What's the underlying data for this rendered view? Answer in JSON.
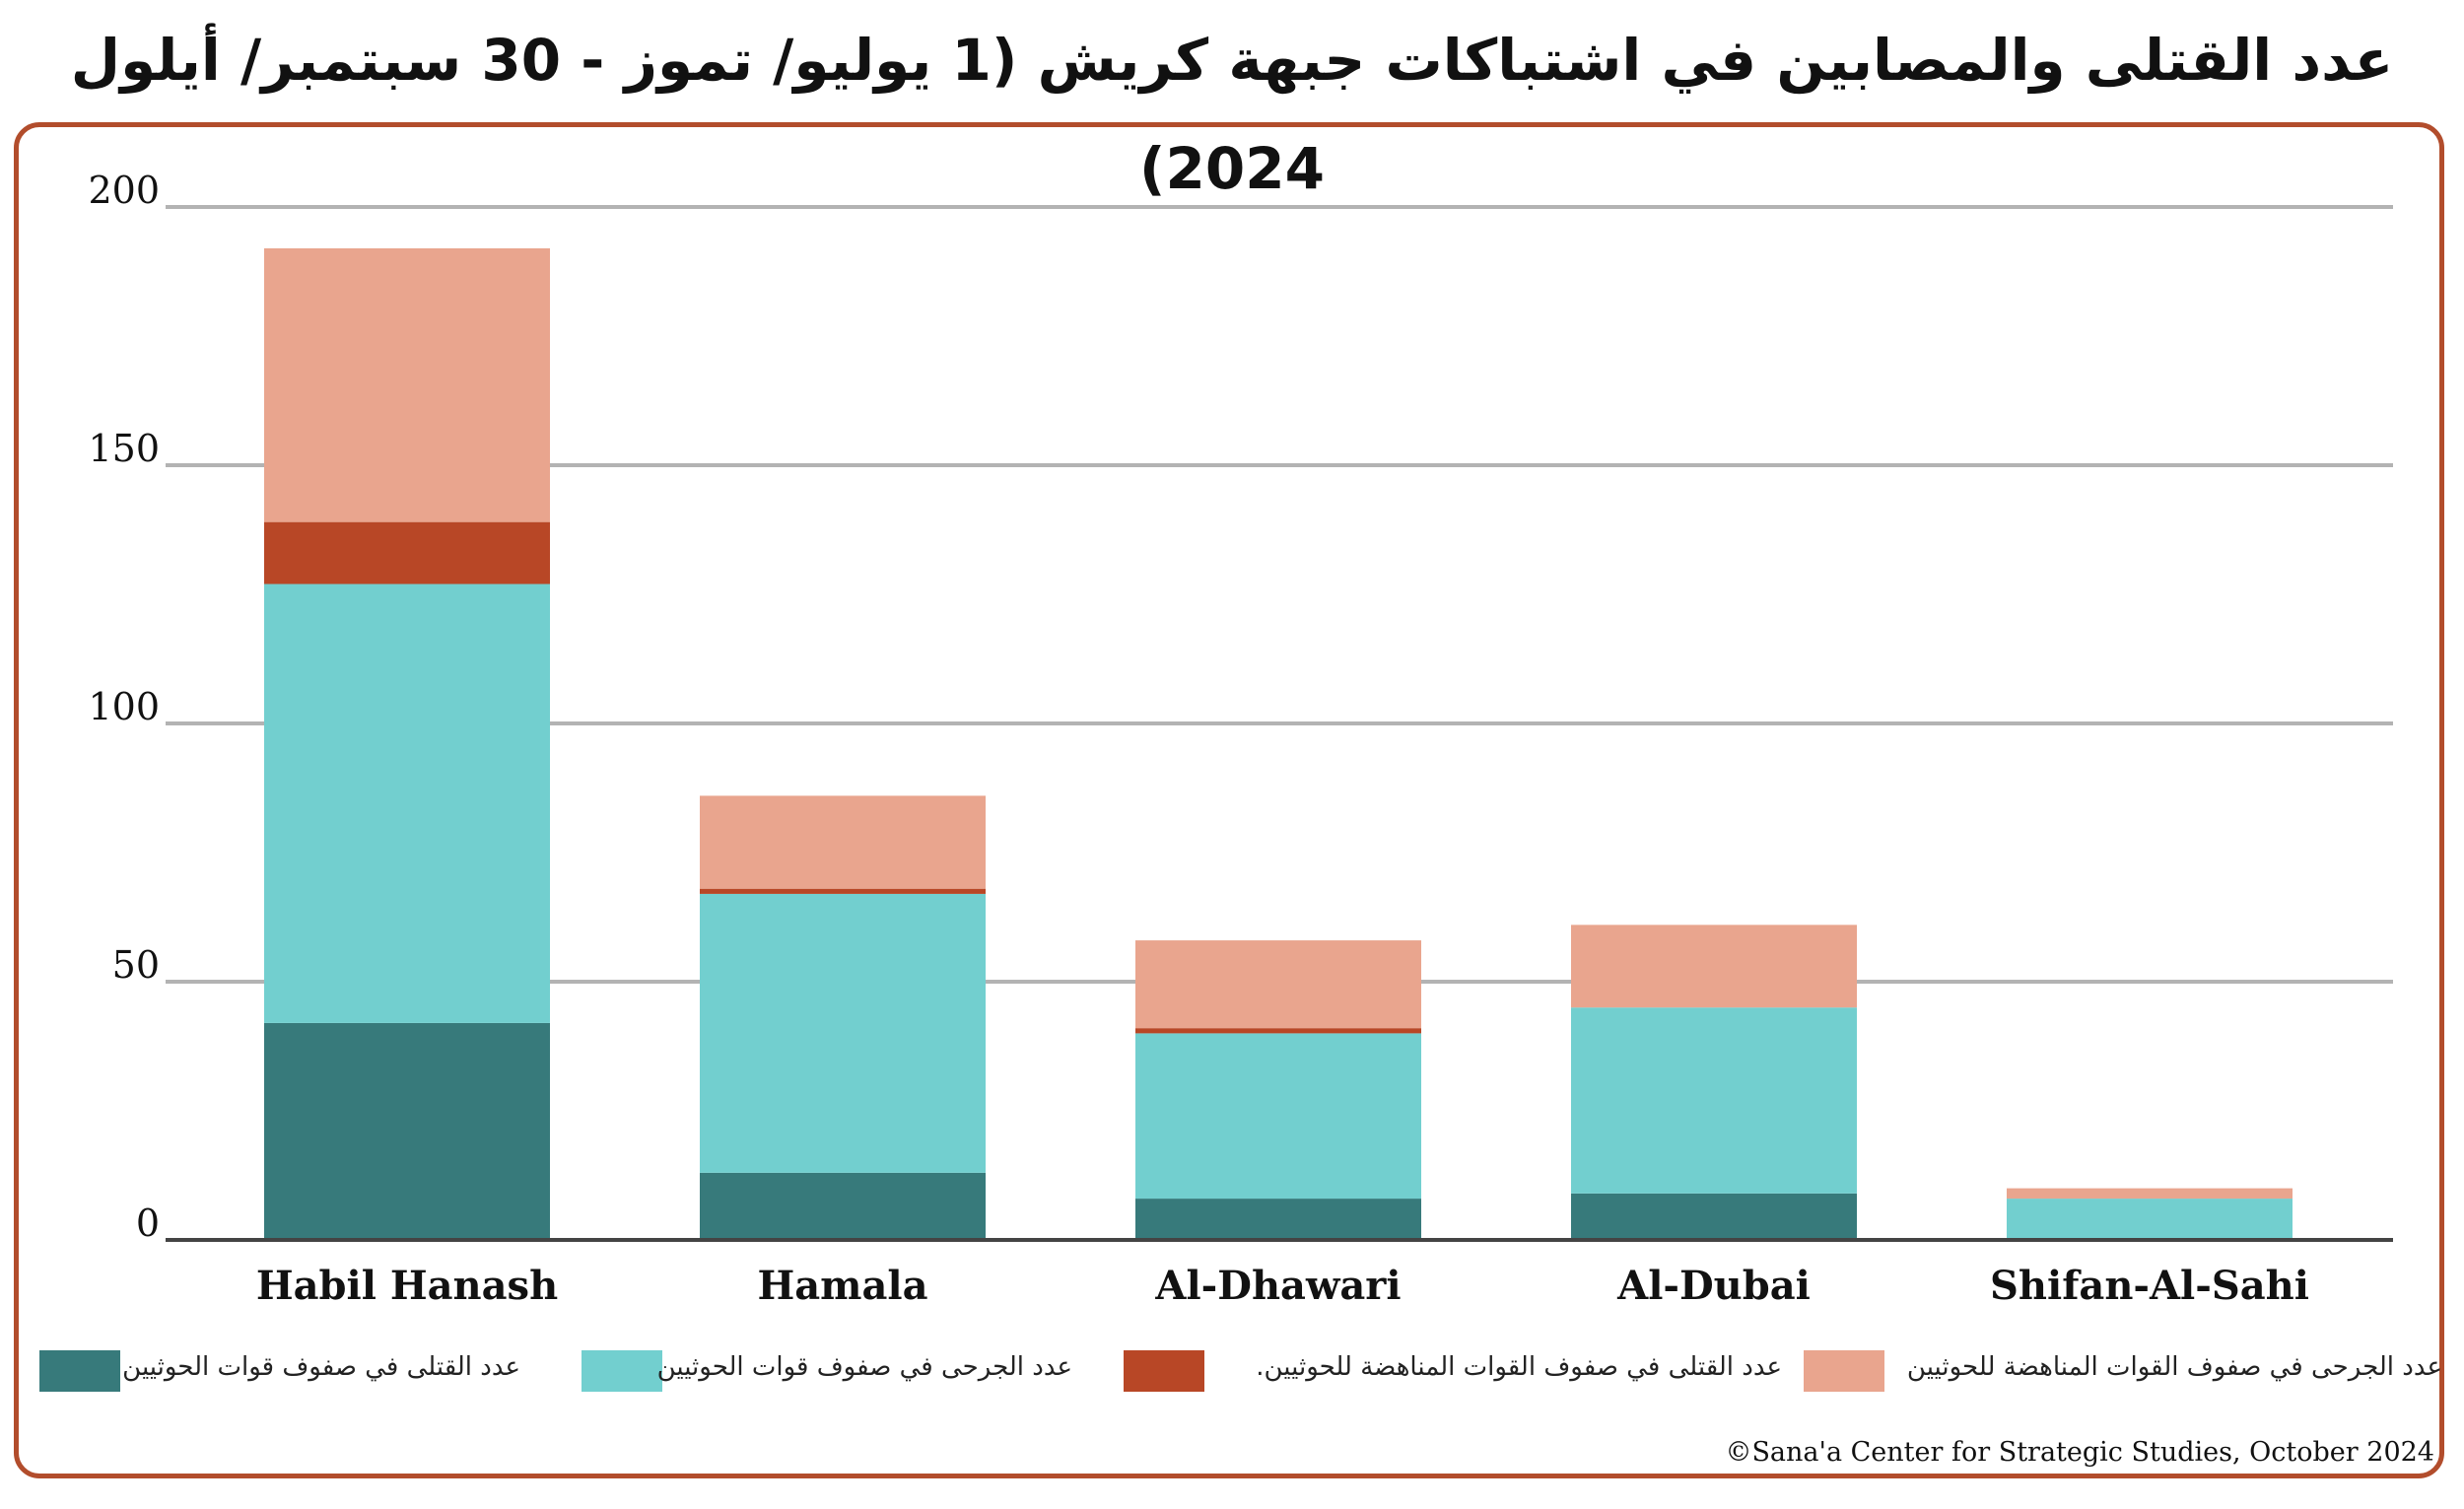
{
  "chart_data": {
    "type": "bar",
    "stacked": true,
    "title": "عدد القتلى والمصابين في اشتباكات جبهة كريش (1 يوليو/ تموز - 30 سبتمبر/ أيلول 2024)",
    "categories": [
      "Habil Hanash",
      "Hamala",
      "Al-Dhawari",
      "Al-Dubai",
      "Shifan-Al-Sahi"
    ],
    "ylim": [
      0,
      200
    ],
    "yticks": [
      "0",
      "50",
      "100",
      "150",
      "200"
    ],
    "grid": true,
    "legend_position": "bottom",
    "series": [
      {
        "name": "عدد القتلى في صفوف قوات الحوثيين",
        "color": "#377a7b",
        "values": [
          42,
          13,
          8,
          9,
          0
        ]
      },
      {
        "name": "عدد الجرحى في صفوف قوات الحوثيين",
        "color": "#72cfcf",
        "values": [
          85,
          54,
          32,
          36,
          8
        ]
      },
      {
        "name": "عدد القتلى في صفوف القوات المناهضة للحوثيين.",
        "color": "#b84726",
        "values": [
          12,
          1,
          1,
          0,
          0
        ]
      },
      {
        "name": "عدد الجرحى في صفوف القوات المناهضة للحوثيين",
        "color": "#e9a58e",
        "values": [
          53,
          18,
          17,
          16,
          2
        ]
      }
    ],
    "source": "©Sana'a Center for Strategic Studies, October 2024"
  }
}
